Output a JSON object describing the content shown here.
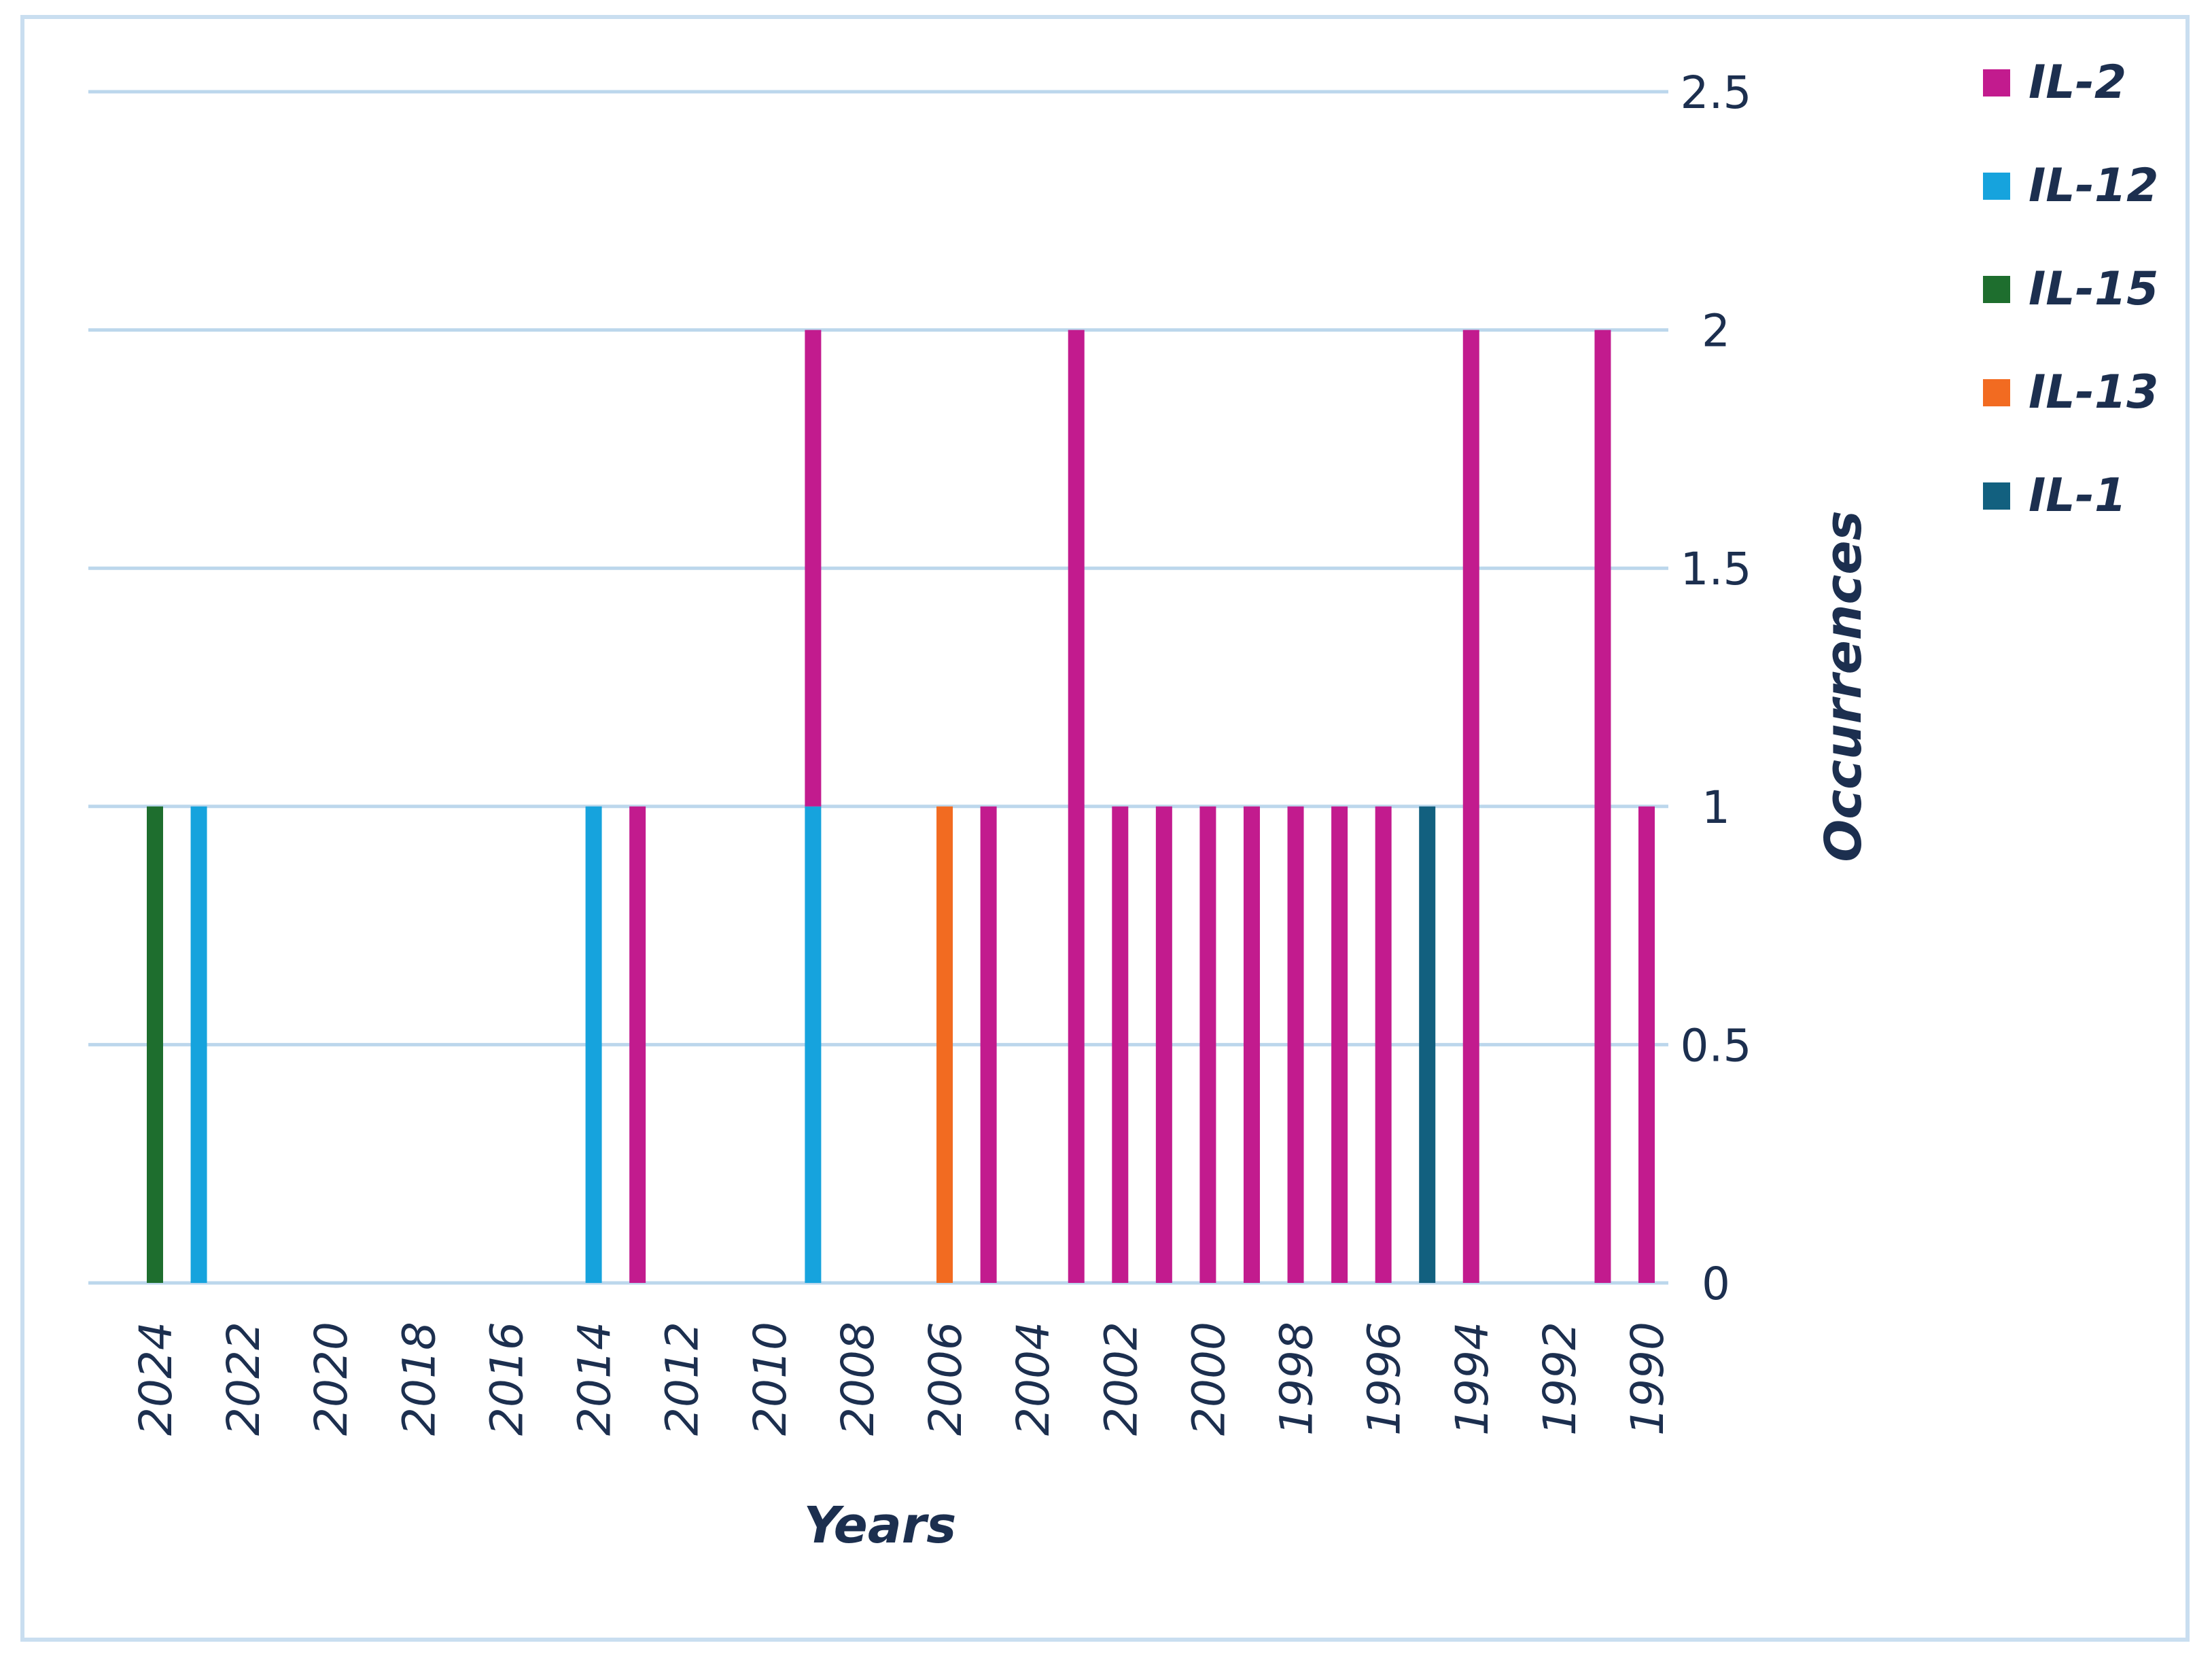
{
  "chart_data": {
    "type": "bar",
    "stacked": true,
    "xlabel": "Years",
    "ylabel": "Occurrences",
    "ylim": [
      0,
      2.5
    ],
    "y_ticks": [
      "0",
      "0.5",
      "1",
      "1.5",
      "2",
      "2.5"
    ],
    "x_tick_labels": [
      "2024",
      "2022",
      "2020",
      "2018",
      "2016",
      "2014",
      "2012",
      "2010",
      "2008",
      "2006",
      "2004",
      "2002",
      "2000",
      "1998",
      "1996",
      "1994",
      "1992",
      "1990"
    ],
    "x_range": [
      2024,
      1990
    ],
    "gridlines": true,
    "legend_position": "top-right",
    "series": [
      {
        "name": "IL-2",
        "color": "#c21b8e",
        "points": [
          {
            "x": 2013,
            "y": 1
          },
          {
            "x": 2009,
            "y": 1
          },
          {
            "x": 2005,
            "y": 1
          },
          {
            "x": 2003,
            "y": 2
          },
          {
            "x": 2002,
            "y": 1
          },
          {
            "x": 2001,
            "y": 1
          },
          {
            "x": 2000,
            "y": 1
          },
          {
            "x": 1999,
            "y": 1
          },
          {
            "x": 1998,
            "y": 1
          },
          {
            "x": 1997,
            "y": 1
          },
          {
            "x": 1996,
            "y": 1
          },
          {
            "x": 1994,
            "y": 2
          },
          {
            "x": 1991,
            "y": 2
          },
          {
            "x": 1990,
            "y": 1
          }
        ]
      },
      {
        "name": "IL-12",
        "color": "#16a3dd",
        "points": [
          {
            "x": 2023,
            "y": 1
          },
          {
            "x": 2014,
            "y": 1
          },
          {
            "x": 2009,
            "y": 1
          }
        ]
      },
      {
        "name": "IL-15",
        "color": "#1e6e2e",
        "points": [
          {
            "x": 2024,
            "y": 1
          }
        ]
      },
      {
        "name": "IL-13",
        "color": "#f26b21",
        "points": [
          {
            "x": 2006,
            "y": 1
          }
        ]
      },
      {
        "name": "IL-1",
        "color": "#12607f",
        "points": [
          {
            "x": 1995,
            "y": 1
          }
        ]
      }
    ]
  }
}
